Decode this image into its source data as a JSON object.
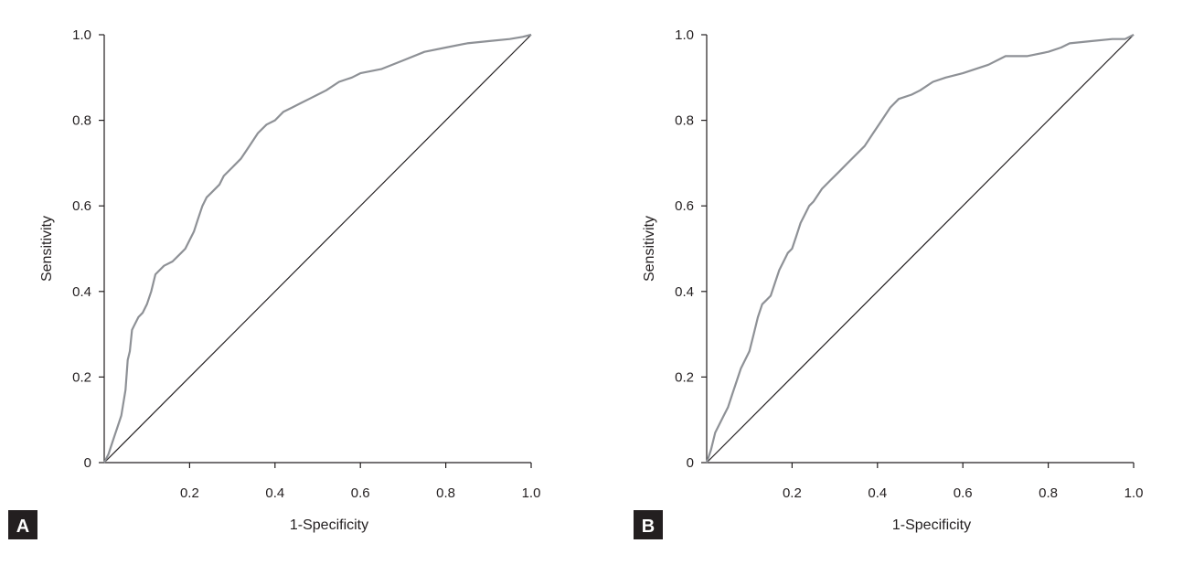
{
  "chart_data": [
    {
      "type": "line",
      "panel_label": "A",
      "xlabel": "1-Specificity",
      "ylabel": "Sensitivity",
      "xlim": [
        0,
        1
      ],
      "ylim": [
        0,
        1
      ],
      "x_ticks": [
        0.2,
        0.4,
        0.6,
        0.8,
        1.0
      ],
      "x_tick_labels": [
        "0.2",
        "0.4",
        "0.6",
        "0.8",
        "1.0"
      ],
      "y_ticks": [
        0,
        0.2,
        0.4,
        0.6,
        0.8,
        1.0
      ],
      "y_tick_labels": [
        "0",
        "0.2",
        "0.4",
        "0.6",
        "0.8",
        "1.0"
      ],
      "grid": false,
      "reference_line": [
        [
          0,
          0
        ],
        [
          1,
          1
        ]
      ],
      "colors": {
        "curve": "#8e9196",
        "reference": "#231f20",
        "axis": "#231f20",
        "badge": "#231f20"
      },
      "series": [
        {
          "x": [
            0,
            0.01,
            0.02,
            0.03,
            0.04,
            0.05,
            0.055,
            0.06,
            0.065,
            0.07,
            0.08,
            0.09,
            0.1,
            0.11,
            0.12,
            0.13,
            0.14,
            0.16,
            0.18,
            0.19,
            0.2,
            0.21,
            0.22,
            0.23,
            0.24,
            0.25,
            0.27,
            0.28,
            0.3,
            0.32,
            0.34,
            0.36,
            0.38,
            0.4,
            0.42,
            0.44,
            0.46,
            0.48,
            0.5,
            0.52,
            0.55,
            0.58,
            0.6,
            0.65,
            0.7,
            0.75,
            0.8,
            0.85,
            0.9,
            0.95,
            0.98,
            1.0
          ],
          "y": [
            0,
            0.02,
            0.05,
            0.08,
            0.11,
            0.17,
            0.24,
            0.26,
            0.31,
            0.32,
            0.34,
            0.35,
            0.37,
            0.4,
            0.44,
            0.45,
            0.46,
            0.47,
            0.49,
            0.5,
            0.52,
            0.54,
            0.57,
            0.6,
            0.62,
            0.63,
            0.65,
            0.67,
            0.69,
            0.71,
            0.74,
            0.77,
            0.79,
            0.8,
            0.82,
            0.83,
            0.84,
            0.85,
            0.86,
            0.87,
            0.89,
            0.9,
            0.91,
            0.92,
            0.94,
            0.96,
            0.97,
            0.98,
            0.985,
            0.99,
            0.995,
            1.0
          ]
        }
      ]
    },
    {
      "type": "line",
      "panel_label": "B",
      "xlabel": "1-Specificity",
      "ylabel": "Sensitivity",
      "xlim": [
        0,
        1
      ],
      "ylim": [
        0,
        1
      ],
      "x_ticks": [
        0.2,
        0.4,
        0.6,
        0.8,
        1.0
      ],
      "x_tick_labels": [
        "0.2",
        "0.4",
        "0.6",
        "0.8",
        "1.0"
      ],
      "y_ticks": [
        0,
        0.2,
        0.4,
        0.6,
        0.8,
        1.0
      ],
      "y_tick_labels": [
        "0",
        "0.2",
        "0.4",
        "0.6",
        "0.8",
        "1.0"
      ],
      "grid": false,
      "reference_line": [
        [
          0,
          0
        ],
        [
          1,
          1
        ]
      ],
      "colors": {
        "curve": "#8e9196",
        "reference": "#231f20",
        "axis": "#231f20",
        "badge": "#231f20"
      },
      "series": [
        {
          "x": [
            0,
            0.01,
            0.02,
            0.03,
            0.04,
            0.05,
            0.06,
            0.07,
            0.08,
            0.09,
            0.1,
            0.11,
            0.12,
            0.13,
            0.14,
            0.15,
            0.16,
            0.17,
            0.18,
            0.19,
            0.2,
            0.21,
            0.22,
            0.23,
            0.24,
            0.25,
            0.27,
            0.29,
            0.31,
            0.33,
            0.35,
            0.37,
            0.39,
            0.41,
            0.43,
            0.45,
            0.48,
            0.5,
            0.53,
            0.56,
            0.6,
            0.63,
            0.66,
            0.7,
            0.75,
            0.8,
            0.83,
            0.85,
            0.9,
            0.95,
            0.98,
            1.0
          ],
          "y": [
            0,
            0.03,
            0.07,
            0.09,
            0.11,
            0.13,
            0.16,
            0.19,
            0.22,
            0.24,
            0.26,
            0.3,
            0.34,
            0.37,
            0.38,
            0.39,
            0.42,
            0.45,
            0.47,
            0.49,
            0.5,
            0.53,
            0.56,
            0.58,
            0.6,
            0.61,
            0.64,
            0.66,
            0.68,
            0.7,
            0.72,
            0.74,
            0.77,
            0.8,
            0.83,
            0.85,
            0.86,
            0.87,
            0.89,
            0.9,
            0.91,
            0.92,
            0.93,
            0.95,
            0.95,
            0.96,
            0.97,
            0.98,
            0.985,
            0.99,
            0.99,
            1.0
          ]
        }
      ]
    }
  ]
}
